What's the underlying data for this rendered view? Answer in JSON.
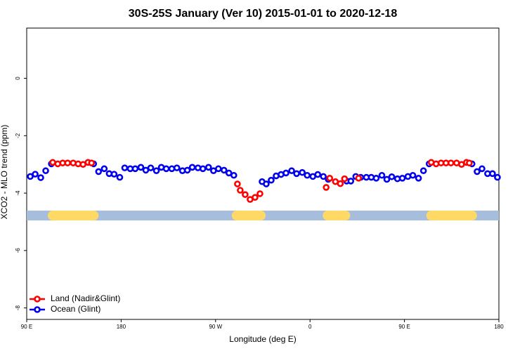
{
  "chart_data": {
    "type": "scatter",
    "title": "30S-25S January (Ver 10)   2015-01-01 to 2020-12-18",
    "x_label": "Longitude (deg E)",
    "y_label": "XCO2 - MLO trend (ppm)",
    "xlim": [
      90,
      540
    ],
    "ylim": [
      -8.4,
      1.75
    ],
    "xticks": [
      {
        "value": 90,
        "label": "90 E"
      },
      180,
      {
        "value": 270,
        "label": "90 W"
      },
      {
        "value": 360,
        "label": "0"
      },
      {
        "value": 450,
        "label": "90 E"
      },
      {
        "value": 540,
        "label": "180"
      }
    ],
    "yticks": [
      0,
      -2,
      -4,
      -6,
      -8
    ],
    "legend": "bottomleft",
    "band": {
      "value": -4.78,
      "color": "#a6bddb",
      "land_color": "#ffd966",
      "land": [
        [
          114.8,
          153.8
        ],
        [
          290.1,
          313.0
        ],
        [
          376.8,
          393.6
        ],
        [
          475.5,
          514.4
        ]
      ]
    },
    "series": [
      {
        "name": "Ocean (Glint)",
        "color": "#0000ee",
        "x": [
          93.4,
          98.1,
          103.4,
          108.1,
          113.5,
          153.8,
          158.5,
          163.9,
          168.6,
          173.3,
          178.7,
          183.4,
          188.7,
          193.4,
          198.8,
          203.5,
          208.2,
          213.6,
          218.3,
          223.0,
          228.3,
          233.1,
          238.4,
          243.1,
          247.8,
          253.2,
          257.9,
          263.3,
          268.0,
          272.7,
          278.0,
          282.7,
          287.4,
          314.3,
          318.3,
          323.0,
          327.7,
          332.4,
          337.1,
          342.5,
          347.2,
          352.6,
          357.3,
          362.7,
          367.4,
          372.7,
          377.4,
          394.9,
          398.9,
          403.6,
          408.3,
          413.7,
          418.4,
          423.1,
          428.5,
          433.2,
          437.9,
          443.3,
          448.0,
          453.3,
          458.0,
          463.4,
          468.1,
          473.5,
          514.4,
          519.2,
          523.9,
          529.2,
          533.9,
          538.6
        ],
        "values": [
          -3.42,
          -3.34,
          -3.46,
          -3.22,
          -2.98,
          -2.98,
          -3.25,
          -3.15,
          -3.32,
          -3.34,
          -3.45,
          -3.12,
          -3.15,
          -3.15,
          -3.1,
          -3.2,
          -3.12,
          -3.22,
          -3.1,
          -3.15,
          -3.15,
          -3.12,
          -3.22,
          -3.2,
          -3.1,
          -3.12,
          -3.15,
          -3.1,
          -3.22,
          -3.15,
          -3.2,
          -3.3,
          -3.38,
          -3.6,
          -3.68,
          -3.55,
          -3.4,
          -3.35,
          -3.3,
          -3.22,
          -3.32,
          -3.28,
          -3.38,
          -3.42,
          -3.35,
          -3.42,
          -3.52,
          -3.58,
          -3.58,
          -3.42,
          -3.45,
          -3.45,
          -3.45,
          -3.48,
          -3.38,
          -3.52,
          -3.43,
          -3.5,
          -3.48,
          -3.42,
          -3.38,
          -3.48,
          -3.22,
          -2.98,
          -2.98,
          -3.25,
          -3.15,
          -3.32,
          -3.32,
          -3.45
        ]
      },
      {
        "name": "Land (Nadir&Glint)",
        "color": "#ff0000",
        "x": [
          114.8,
          119.6,
          124.3,
          129.0,
          134.3,
          139.0,
          143.7,
          148.4,
          151.8,
          290.8,
          293.5,
          298.2,
          302.9,
          307.6,
          312.3,
          375.4,
          378.8,
          384.2,
          388.9,
          392.9,
          406.3,
          475.5,
          480.2,
          484.9,
          489.6,
          494.3,
          499.7,
          504.4,
          509.1,
          511.8
        ],
        "values": [
          -2.93,
          -2.98,
          -2.95,
          -2.95,
          -2.95,
          -2.98,
          -3.0,
          -2.93,
          -2.95,
          -3.68,
          -3.9,
          -4.05,
          -4.22,
          -4.15,
          -4.02,
          -3.8,
          -3.48,
          -3.6,
          -3.67,
          -3.5,
          -3.48,
          -2.93,
          -2.98,
          -2.95,
          -2.95,
          -2.95,
          -2.95,
          -3.0,
          -2.93,
          -2.95
        ]
      }
    ]
  }
}
